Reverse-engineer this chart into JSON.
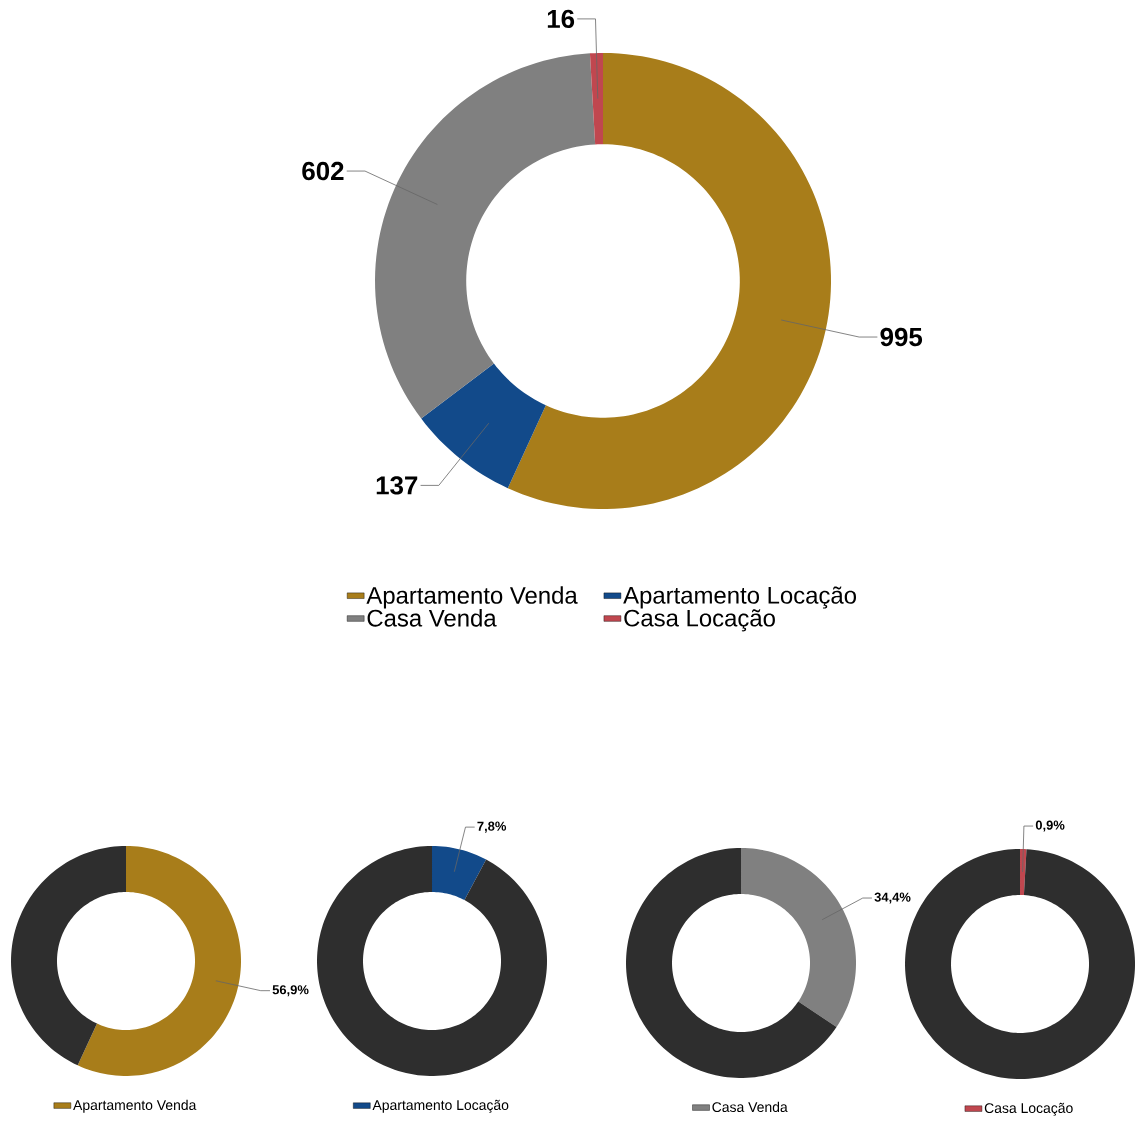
{
  "chart_data": [
    {
      "type": "donut",
      "categories": [
        "Apartamento Venda",
        "Apartamento Locação",
        "Casa Venda",
        "Casa Locação"
      ],
      "values": [
        995,
        137,
        602,
        16
      ],
      "colors": [
        "#a87d1a",
        "#124a8a",
        "#808080",
        "#c0474f"
      ],
      "data_labels": true,
      "legend": "bottom"
    },
    {
      "type": "donut",
      "categories": [
        "Apartamento Venda",
        null
      ],
      "values": [
        56.9,
        43.1
      ],
      "colors": [
        "#a87d1a",
        "#2e2e2e"
      ],
      "value_labels": [
        "56,9%",
        null
      ],
      "legend": "bottom"
    },
    {
      "type": "donut",
      "categories": [
        "Apartamento Locação",
        null
      ],
      "values": [
        7.8,
        92.2
      ],
      "colors": [
        "#124a8a",
        "#2e2e2e"
      ],
      "value_labels": [
        "7,8%",
        null
      ],
      "legend": "bottom"
    },
    {
      "type": "donut",
      "categories": [
        "Casa Venda",
        null
      ],
      "values": [
        34.4,
        65.6
      ],
      "colors": [
        "#808080",
        "#2e2e2e"
      ],
      "value_labels": [
        "34,4%",
        null
      ],
      "legend": "bottom"
    },
    {
      "type": "donut",
      "categories": [
        "Casa Locação",
        null
      ],
      "values": [
        0.9,
        99.1
      ],
      "colors": [
        "#c0474f",
        "#2e2e2e"
      ],
      "value_labels": [
        "0,9%",
        null
      ],
      "legend": "bottom"
    }
  ]
}
